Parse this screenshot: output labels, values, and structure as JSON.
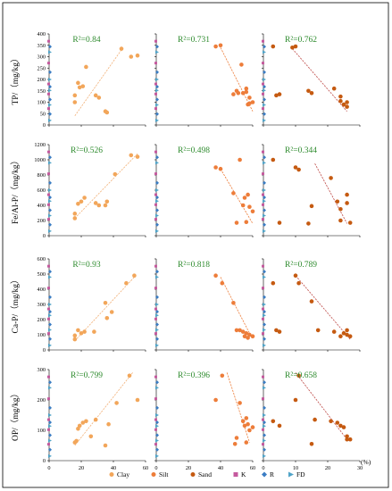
{
  "figure": {
    "x_unit_label": "(%)",
    "legend": [
      {
        "label": "Clay",
        "marker": "dot",
        "color": "#f2a65a"
      },
      {
        "label": "Silt",
        "marker": "dot",
        "color": "#ed7d3a"
      },
      {
        "label": "Sand",
        "marker": "dot",
        "color": "#c55a11"
      },
      {
        "label": "K",
        "marker": "square",
        "color": "#c55a9e"
      },
      {
        "label": "R",
        "marker": "diamond",
        "color": "#3b7dc4"
      },
      {
        "label": "FD",
        "marker": "triangle",
        "color": "#4fa3c7"
      }
    ],
    "colors": {
      "clay": "#f2a65a",
      "silt": "#ed7d3a",
      "sand": "#c55a11",
      "r2_text": "#2e8b2e",
      "clay_line": "#f2b27a",
      "silt_line": "#ed7d3a",
      "sand_line": "#c0504d"
    }
  },
  "chart_data": [
    {
      "type": "scatter",
      "row_label": "TP/（mg/kg）",
      "column": "Clay",
      "r2_label": "R²=0.84",
      "xlim": [
        0,
        60
      ],
      "ylim": [
        0,
        400
      ],
      "yticks": [
        0,
        50,
        100,
        150,
        200,
        250,
        300,
        350,
        400
      ],
      "xticks": [
        0,
        20,
        40,
        60
      ],
      "points": [
        [
          16,
          130
        ],
        [
          16,
          100
        ],
        [
          18,
          185
        ],
        [
          19,
          165
        ],
        [
          21,
          170
        ],
        [
          23,
          255
        ],
        [
          29,
          130
        ],
        [
          31,
          120
        ],
        [
          35,
          60
        ],
        [
          36,
          55
        ],
        [
          45,
          335
        ],
        [
          51,
          300
        ],
        [
          55,
          305
        ]
      ],
      "trend": [
        [
          16,
          40
        ],
        [
          46,
          340
        ]
      ]
    },
    {
      "type": "scatter",
      "row_label": "TP/（mg/kg）",
      "column": "Silt",
      "r2_label": "R²=0.731",
      "xlim": [
        0,
        60
      ],
      "ylim": [
        0,
        400
      ],
      "xticks": [
        0,
        20,
        40,
        60
      ],
      "points": [
        [
          37,
          345
        ],
        [
          40,
          350
        ],
        [
          48,
          135
        ],
        [
          50,
          150
        ],
        [
          51,
          140
        ],
        [
          53,
          265
        ],
        [
          54,
          140
        ],
        [
          56,
          160
        ],
        [
          56,
          145
        ],
        [
          57,
          90
        ],
        [
          58,
          95
        ],
        [
          58,
          120
        ],
        [
          60,
          100
        ]
      ],
      "trend": [
        [
          40,
          340
        ],
        [
          60,
          60
        ]
      ]
    },
    {
      "type": "scatter",
      "row_label": "TP/（mg/kg）",
      "column": "Sand",
      "r2_label": "R²=0.762",
      "xlim": [
        0,
        30
      ],
      "ylim": [
        0,
        400
      ],
      "xticks": [
        0,
        10,
        20,
        30
      ],
      "points": [
        [
          3,
          345
        ],
        [
          5,
          135
        ],
        [
          9,
          340
        ],
        [
          10,
          345
        ],
        [
          14,
          150
        ],
        [
          15,
          140
        ],
        [
          22,
          160
        ],
        [
          24,
          125
        ],
        [
          24,
          105
        ],
        [
          25,
          90
        ],
        [
          26,
          100
        ],
        [
          26,
          80
        ],
        [
          4,
          130
        ]
      ],
      "trend": [
        [
          9,
          335
        ],
        [
          26,
          60
        ]
      ]
    },
    {
      "type": "scatter",
      "row_label": "Fe/Al-P/（mg/kg）",
      "column": "Clay",
      "r2_label": "R²=0.526",
      "xlim": [
        0,
        60
      ],
      "ylim": [
        0,
        1200
      ],
      "yticks": [
        0,
        200,
        400,
        600,
        800,
        1000,
        1200
      ],
      "xticks": [
        0,
        20,
        40,
        60
      ],
      "points": [
        [
          16,
          230
        ],
        [
          16,
          290
        ],
        [
          18,
          420
        ],
        [
          20,
          450
        ],
        [
          22,
          500
        ],
        [
          29,
          430
        ],
        [
          31,
          400
        ],
        [
          35,
          400
        ],
        [
          36,
          450
        ],
        [
          41,
          810
        ],
        [
          51,
          1060
        ],
        [
          55,
          1040
        ]
      ],
      "trend": [
        [
          16,
          230
        ],
        [
          55,
          1080
        ]
      ]
    },
    {
      "type": "scatter",
      "row_label": "Fe/Al-P/（mg/kg）",
      "column": "Silt",
      "r2_label": "R²=0.498",
      "xlim": [
        0,
        60
      ],
      "ylim": [
        0,
        1200
      ],
      "xticks": [
        0,
        20,
        40,
        60
      ],
      "points": [
        [
          37,
          900
        ],
        [
          40,
          880
        ],
        [
          48,
          560
        ],
        [
          50,
          170
        ],
        [
          52,
          1000
        ],
        [
          54,
          400
        ],
        [
          55,
          500
        ],
        [
          56,
          180
        ],
        [
          57,
          540
        ],
        [
          58,
          380
        ],
        [
          60,
          320
        ]
      ],
      "trend": [
        [
          40,
          880
        ],
        [
          60,
          160
        ]
      ]
    },
    {
      "type": "scatter",
      "row_label": "Fe/Al-P/（mg/kg）",
      "column": "Sand",
      "r2_label": "R²=0.344",
      "xlim": [
        0,
        30
      ],
      "ylim": [
        0,
        1200
      ],
      "xticks": [
        0,
        10,
        20,
        30
      ],
      "points": [
        [
          3,
          1000
        ],
        [
          5,
          170
        ],
        [
          10,
          900
        ],
        [
          11,
          870
        ],
        [
          14,
          160
        ],
        [
          15,
          390
        ],
        [
          21,
          760
        ],
        [
          23,
          450
        ],
        [
          24,
          350
        ],
        [
          24,
          200
        ],
        [
          26,
          540
        ],
        [
          26,
          430
        ],
        [
          27,
          170
        ]
      ],
      "trend": [
        [
          16,
          950
        ],
        [
          26,
          160
        ]
      ]
    },
    {
      "type": "scatter",
      "row_label": "Ca-P/（mg/kg）",
      "column": "Clay",
      "r2_label": "R²=0.93",
      "xlim": [
        0,
        60
      ],
      "ylim": [
        0,
        600
      ],
      "yticks": [
        0,
        100,
        200,
        300,
        400,
        500,
        600
      ],
      "xticks": [
        0,
        20,
        40,
        60
      ],
      "points": [
        [
          16,
          70
        ],
        [
          16,
          95
        ],
        [
          18,
          130
        ],
        [
          20,
          110
        ],
        [
          22,
          120
        ],
        [
          28,
          120
        ],
        [
          35,
          310
        ],
        [
          36,
          210
        ],
        [
          39,
          250
        ],
        [
          48,
          440
        ],
        [
          53,
          490
        ]
      ],
      "trend": [
        [
          16,
          60
        ],
        [
          53,
          480
        ]
      ]
    },
    {
      "type": "scatter",
      "row_label": "Ca-P/（mg/kg）",
      "column": "Silt",
      "r2_label": "R²=0.818",
      "xlim": [
        0,
        60
      ],
      "ylim": [
        0,
        600
      ],
      "xticks": [
        0,
        20,
        40,
        60
      ],
      "points": [
        [
          37,
          490
        ],
        [
          41,
          440
        ],
        [
          48,
          310
        ],
        [
          50,
          130
        ],
        [
          52,
          130
        ],
        [
          54,
          120
        ],
        [
          55,
          90
        ],
        [
          56,
          110
        ],
        [
          57,
          80
        ],
        [
          58,
          100
        ],
        [
          60,
          90
        ]
      ],
      "trend": [
        [
          40,
          480
        ],
        [
          60,
          70
        ]
      ]
    },
    {
      "type": "scatter",
      "row_label": "Ca-P/（mg/kg）",
      "column": "Sand",
      "r2_label": "R²=0.789",
      "xlim": [
        0,
        30
      ],
      "ylim": [
        0,
        600
      ],
      "xticks": [
        0,
        10,
        20,
        30
      ],
      "points": [
        [
          3,
          440
        ],
        [
          4,
          130
        ],
        [
          5,
          120
        ],
        [
          10,
          490
        ],
        [
          11,
          440
        ],
        [
          15,
          320
        ],
        [
          17,
          130
        ],
        [
          22,
          120
        ],
        [
          24,
          90
        ],
        [
          25,
          110
        ],
        [
          26,
          130
        ],
        [
          26,
          100
        ],
        [
          27,
          90
        ]
      ],
      "trend": [
        [
          10,
          490
        ],
        [
          27,
          70
        ]
      ]
    },
    {
      "type": "scatter",
      "row_label": "OP/（mg/kg）",
      "column": "Clay",
      "r2_label": "R²=0.799",
      "xlim": [
        0,
        60
      ],
      "ylim": [
        0,
        300
      ],
      "yticks": [
        0,
        100,
        200,
        300
      ],
      "xticks": [
        0,
        20,
        40,
        60
      ],
      "points": [
        [
          16,
          60
        ],
        [
          17,
          65
        ],
        [
          18,
          105
        ],
        [
          19,
          115
        ],
        [
          21,
          125
        ],
        [
          23,
          130
        ],
        [
          26,
          80
        ],
        [
          29,
          135
        ],
        [
          35,
          50
        ],
        [
          37,
          120
        ],
        [
          42,
          190
        ],
        [
          50,
          280
        ],
        [
          55,
          200
        ]
      ],
      "trend": [
        [
          16,
          50
        ],
        [
          52,
          290
        ]
      ]
    },
    {
      "type": "scatter",
      "row_label": "OP/（mg/kg）",
      "column": "Silt",
      "r2_label": "R²=0.396",
      "xlim": [
        0,
        60
      ],
      "ylim": [
        0,
        300
      ],
      "xticks": [
        0,
        20,
        40,
        60
      ],
      "points": [
        [
          37,
          200
        ],
        [
          41,
          280
        ],
        [
          49,
          55
        ],
        [
          50,
          75
        ],
        [
          52,
          190
        ],
        [
          54,
          130
        ],
        [
          55,
          115
        ],
        [
          56,
          60
        ],
        [
          56,
          140
        ],
        [
          57,
          120
        ],
        [
          58,
          100
        ],
        [
          60,
          110
        ]
      ],
      "trend": [
        [
          44,
          290
        ],
        [
          58,
          60
        ]
      ]
    },
    {
      "type": "scatter",
      "row_label": "OP/（mg/kg）",
      "column": "Sand",
      "r2_label": "R²=0.658",
      "xlim": [
        0,
        30
      ],
      "ylim": [
        0,
        300
      ],
      "xticks": [
        0,
        10,
        20,
        30
      ],
      "points": [
        [
          3,
          130
        ],
        [
          5,
          115
        ],
        [
          10,
          200
        ],
        [
          11,
          280
        ],
        [
          15,
          55
        ],
        [
          16,
          135
        ],
        [
          21,
          130
        ],
        [
          23,
          125
        ],
        [
          24,
          115
        ],
        [
          25,
          110
        ],
        [
          26,
          80
        ],
        [
          26,
          70
        ],
        [
          27,
          70
        ]
      ],
      "trend": [
        [
          10,
          290
        ],
        [
          26,
          70
        ]
      ]
    }
  ]
}
